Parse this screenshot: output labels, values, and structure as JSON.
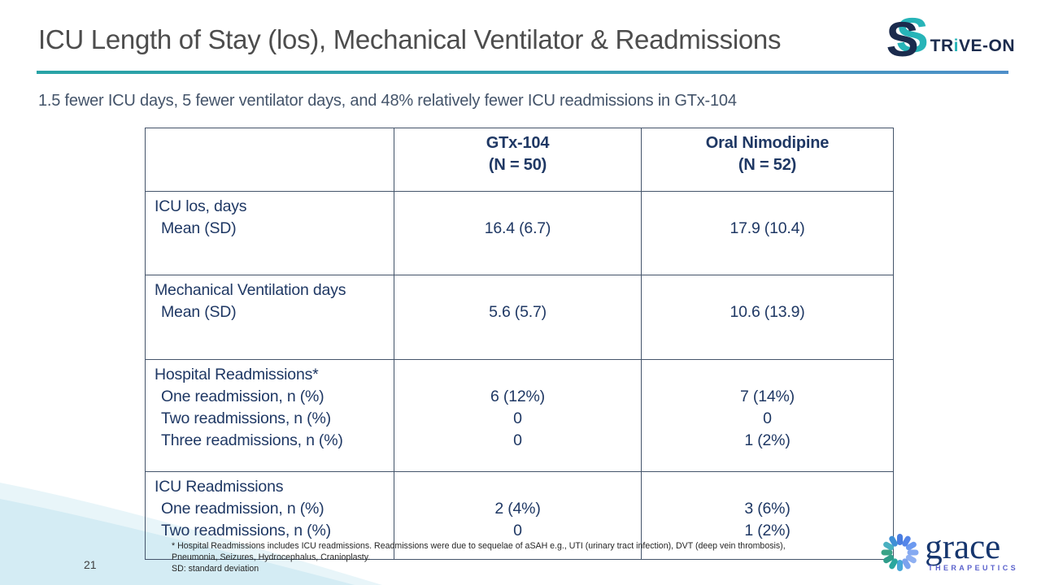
{
  "slide": {
    "title": "ICU Length of Stay (los), Mechanical Ventilator & Readmissions",
    "subtitle": "1.5 fewer ICU days, 5 fewer ventilator days, and 48% relatively fewer ICU readmissions in GTx-104",
    "page_number": "21"
  },
  "logos": {
    "strive_on": {
      "big_letter": "S",
      "text_part1": "TR",
      "text_accent": "i",
      "text_part2": "VE-ON"
    },
    "grace": {
      "name": "grace",
      "tagline": "THERAPEUTICS",
      "icon": "starburst-icon",
      "icon_colors": [
        "#4a7de0",
        "#5585e8",
        "#6d9af0",
        "#85a9f1",
        "#8fb0f2",
        "#7ba3ee",
        "#4aa8d8",
        "#2aa79e",
        "#2f9d8a",
        "#3aa387",
        "#49b0c0",
        "#3f8fd6"
      ]
    }
  },
  "table": {
    "header": {
      "col1": [],
      "col2": [
        "GTx-104",
        "(N = 50)"
      ],
      "col3": [
        "Oral Nimodipine",
        "(N = 52)"
      ]
    },
    "rows": [
      {
        "label": [
          "ICU los, days",
          "Mean (SD)"
        ],
        "gtx": [
          "",
          "16.4 (6.7)"
        ],
        "nimodipine": [
          "",
          "17.9 (10.4)"
        ]
      },
      {
        "label": [
          "Mechanical Ventilation days",
          "Mean (SD)"
        ],
        "gtx": [
          "",
          "5.6 (5.7)"
        ],
        "nimodipine": [
          "",
          "10.6 (13.9)"
        ]
      },
      {
        "label": [
          "Hospital Readmissions*",
          "One readmission, n (%)",
          "Two readmissions, n (%)",
          "Three readmissions, n (%)"
        ],
        "gtx": [
          "",
          "6 (12%)",
          "0",
          "0"
        ],
        "nimodipine": [
          "",
          "7 (14%)",
          "0",
          "1 (2%)"
        ]
      },
      {
        "label": [
          "ICU Readmissions",
          "One readmission, n (%)",
          "Two readmissions, n (%)"
        ],
        "gtx": [
          "",
          "2 (4%)",
          "0"
        ],
        "nimodipine": [
          "",
          "3 (6%)",
          "1 (2%)"
        ]
      }
    ]
  },
  "footnote": {
    "lines": [
      "* Hospital Readmissions includes ICU readmissions.  Readmissions were due to sequelae of aSAH e.g., UTI (urinary tract infection), DVT (deep vein thrombosis),",
      "Pneumonia, Seizures, Hydrocephalus, Cranioplasty.",
      "SD: standard deviation"
    ]
  },
  "colors": {
    "title_gray": "#4d4d4d",
    "rule_teal": "#29a3a6",
    "rule_blue": "#4f8fc9",
    "subtitle_slate": "#44546a",
    "table_navy": "#1f3864",
    "table_border": "#44546a",
    "strive_navy": "#1b2b4d",
    "strive_teal": "#27b4b8",
    "grace_navy": "#16366e",
    "grace_purple": "#5a61cc",
    "corner_curve_main": "#d4ecf4",
    "corner_curve_light": "#e8f5f9"
  }
}
